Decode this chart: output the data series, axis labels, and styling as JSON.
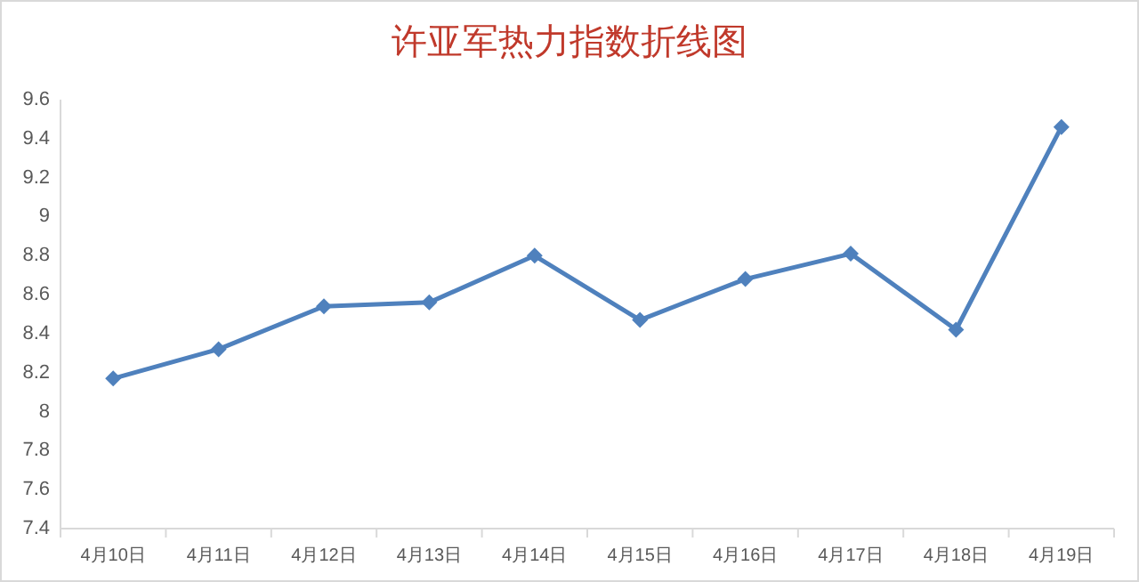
{
  "chart_data": {
    "type": "line",
    "title": "许亚军热力指数折线图",
    "categories": [
      "4月10日",
      "4月11日",
      "4月12日",
      "4月13日",
      "4月14日",
      "4月15日",
      "4月16日",
      "4月17日",
      "4月18日",
      "4月19日"
    ],
    "series": [
      {
        "color": "#4f81bd",
        "values": [
          8.17,
          8.32,
          8.54,
          8.56,
          8.8,
          8.47,
          8.68,
          8.81,
          8.42,
          9.46
        ]
      }
    ],
    "ylim": [
      7.4,
      9.6
    ],
    "yticks": [
      7.4,
      7.6,
      7.8,
      8,
      8.2,
      8.4,
      8.6,
      8.8,
      9,
      9.2,
      9.4,
      9.6
    ],
    "marker": "diamond",
    "line_style": "solid"
  }
}
